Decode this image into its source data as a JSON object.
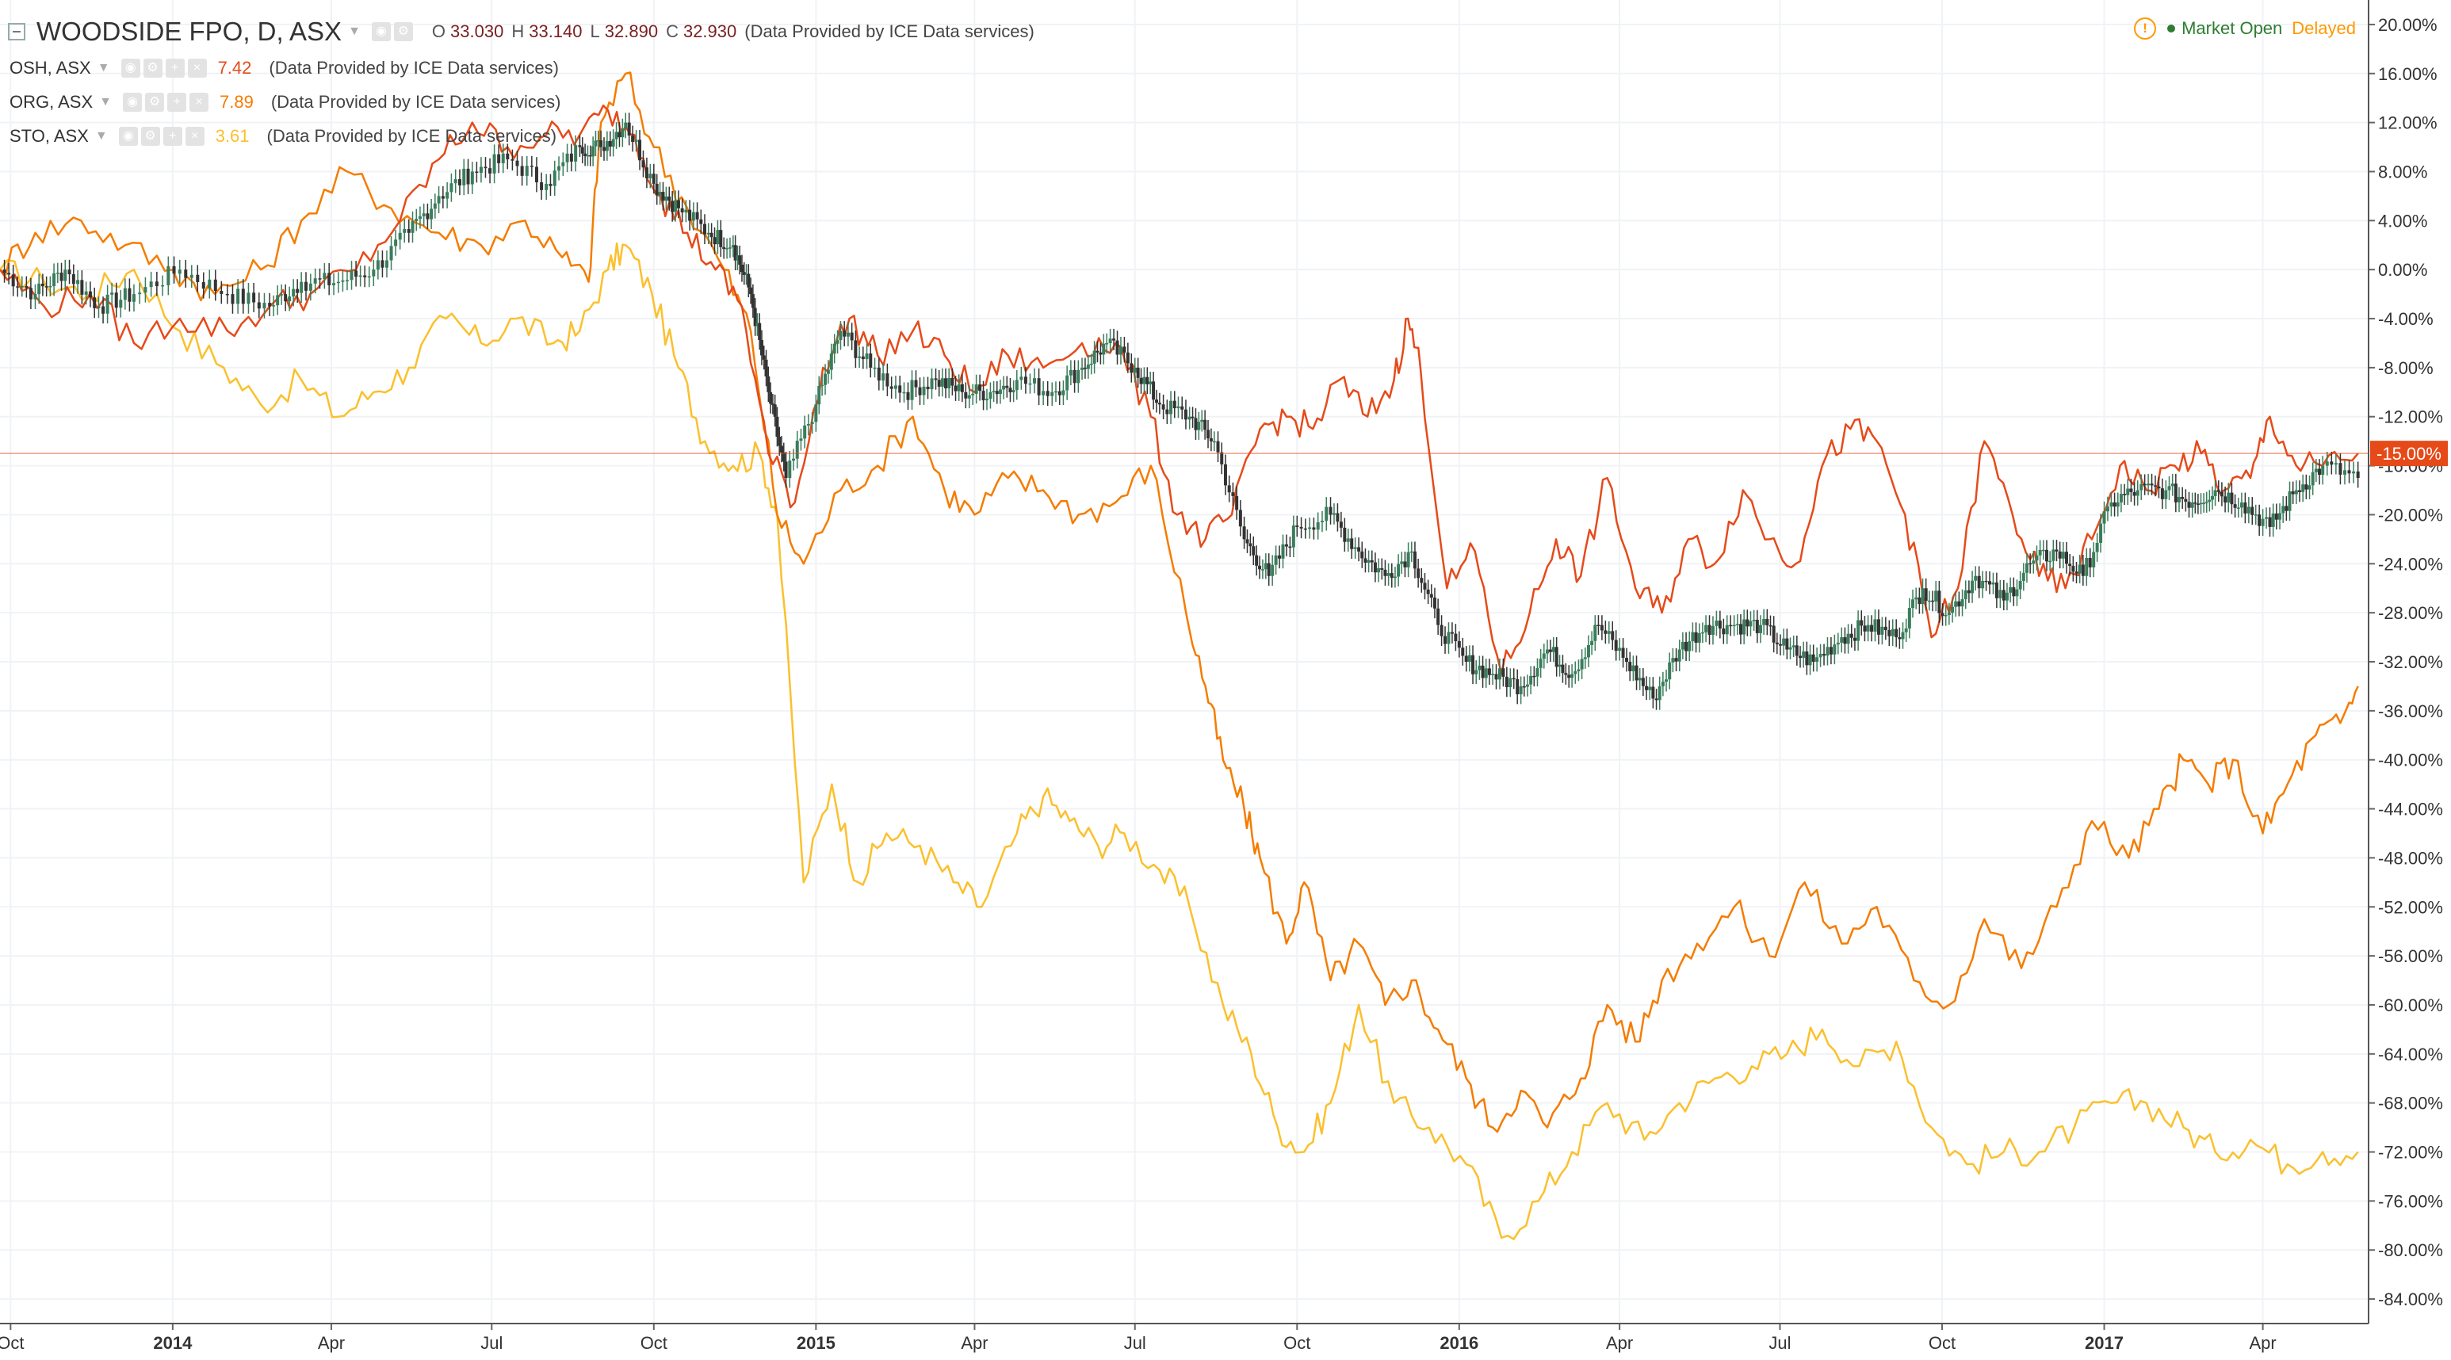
{
  "header": {
    "title": "WOODSIDE FPO, D, ASX",
    "ohlc": [
      {
        "label": "O",
        "value": "33.030"
      },
      {
        "label": "H",
        "value": "33.140"
      },
      {
        "label": "L",
        "value": "32.890"
      },
      {
        "label": "C",
        "value": "32.930"
      }
    ],
    "provider": "(Data Provided by ICE Data services)",
    "status": {
      "alert_icon": "!",
      "market": "Market Open",
      "delay": "Delayed"
    }
  },
  "symbols": [
    {
      "name": "OSH, ASX",
      "value": "7.42",
      "color": "#e64a19",
      "provider": "(Data Provided by ICE Data services)"
    },
    {
      "name": "ORG, ASX",
      "value": "7.89",
      "color": "#f57c00",
      "provider": "(Data Provided by ICE Data services)"
    },
    {
      "name": "STO, ASX",
      "value": "3.61",
      "color": "#fbc02d",
      "provider": "(Data Provided by ICE Data services)"
    }
  ],
  "icons": {
    "collapse": "collapse-icon",
    "caret": "chevron-down-icon",
    "tools": [
      "eye-icon",
      "gear-icon",
      "plus-icon",
      "close-icon"
    ]
  },
  "chart_data": {
    "type": "line",
    "x_type": "date",
    "ylim": [
      -86,
      22
    ],
    "yticks": [
      20,
      16,
      12,
      8,
      4,
      0,
      -4,
      -8,
      -12,
      -16,
      -20,
      -24,
      -28,
      -32,
      -36,
      -40,
      -44,
      -48,
      -52,
      -56,
      -60,
      -64,
      -68,
      -72,
      -76,
      -80,
      -84
    ],
    "ytick_labels": [
      "20.00%",
      "16.00%",
      "12.00%",
      "8.00%",
      "4.00%",
      "0.00%",
      "-4.00%",
      "-8.00%",
      "-12.00%",
      "-16.00%",
      "-20.00%",
      "-24.00%",
      "-28.00%",
      "-32.00%",
      "-36.00%",
      "-40.00%",
      "-44.00%",
      "-48.00%",
      "-52.00%",
      "-56.00%",
      "-60.00%",
      "-64.00%",
      "-68.00%",
      "-72.00%",
      "-76.00%",
      "-80.00%",
      "-84.00%"
    ],
    "x_range": [
      "2013-09-25",
      "2017-05-31"
    ],
    "x_ticks": [
      {
        "date": "2013-10-01",
        "label": "Oct",
        "bold": false
      },
      {
        "date": "2014-01-01",
        "label": "2014",
        "bold": true
      },
      {
        "date": "2014-04-01",
        "label": "Apr",
        "bold": false
      },
      {
        "date": "2014-07-01",
        "label": "Jul",
        "bold": false
      },
      {
        "date": "2014-10-01",
        "label": "Oct",
        "bold": false
      },
      {
        "date": "2015-01-01",
        "label": "2015",
        "bold": true
      },
      {
        "date": "2015-04-01",
        "label": "Apr",
        "bold": false
      },
      {
        "date": "2015-07-01",
        "label": "Jul",
        "bold": false
      },
      {
        "date": "2015-10-01",
        "label": "Oct",
        "bold": false
      },
      {
        "date": "2016-01-01",
        "label": "2016",
        "bold": true
      },
      {
        "date": "2016-04-01",
        "label": "Apr",
        "bold": false
      },
      {
        "date": "2016-07-01",
        "label": "Jul",
        "bold": false
      },
      {
        "date": "2016-10-01",
        "label": "Oct",
        "bold": false
      },
      {
        "date": "2017-01-01",
        "label": "2017",
        "bold": true
      },
      {
        "date": "2017-04-01",
        "label": "Apr",
        "bold": false
      }
    ],
    "last_value": {
      "value": -15.0,
      "label": "-15.00%",
      "color": "#e64a19"
    },
    "series": [
      {
        "name": "WOODSIDE FPO",
        "style": "candles",
        "color": "#333333",
        "dates": [
          "2013-09-25",
          "2013-10-15",
          "2013-11-01",
          "2013-11-20",
          "2013-12-10",
          "2014-01-05",
          "2014-02-01",
          "2014-02-25",
          "2014-03-15",
          "2014-04-05",
          "2014-04-25",
          "2014-05-15",
          "2014-06-01",
          "2014-06-20",
          "2014-07-10",
          "2014-08-01",
          "2014-08-20",
          "2014-09-01",
          "2014-09-15",
          "2014-10-01",
          "2014-10-15",
          "2014-11-01",
          "2014-11-15",
          "2014-11-25",
          "2014-12-05",
          "2014-12-15",
          "2015-01-01",
          "2015-01-15",
          "2015-02-01",
          "2015-02-20",
          "2015-03-10",
          "2015-03-25",
          "2015-04-10",
          "2015-04-25",
          "2015-05-15",
          "2015-06-01",
          "2015-06-15",
          "2015-07-01",
          "2015-07-15",
          "2015-08-01",
          "2015-08-15",
          "2015-09-01",
          "2015-09-15",
          "2015-10-01",
          "2015-10-20",
          "2015-11-05",
          "2015-11-20",
          "2015-12-05",
          "2015-12-20",
          "2016-01-05",
          "2016-01-20",
          "2016-02-05",
          "2016-02-20",
          "2016-03-05",
          "2016-03-20",
          "2016-04-05",
          "2016-04-20",
          "2016-05-05",
          "2016-05-20",
          "2016-06-05",
          "2016-06-20",
          "2016-07-05",
          "2016-07-20",
          "2016-08-05",
          "2016-08-20",
          "2016-09-05",
          "2016-09-20",
          "2016-10-05",
          "2016-10-20",
          "2016-11-05",
          "2016-11-20",
          "2016-12-05",
          "2016-12-20",
          "2017-01-05",
          "2017-01-20",
          "2017-02-05",
          "2017-02-20",
          "2017-03-05",
          "2017-03-20",
          "2017-04-05",
          "2017-04-20",
          "2017-05-05",
          "2017-05-25"
        ],
        "values": [
          0,
          -2,
          0,
          -3,
          -2,
          0,
          -2,
          -3,
          -1,
          -1,
          0,
          3,
          6,
          8,
          9,
          7,
          10,
          10,
          12,
          7,
          5,
          3,
          2,
          -2,
          -10,
          -17,
          -11,
          -5,
          -8,
          -10,
          -9,
          -10,
          -10,
          -9,
          -10,
          -8,
          -6,
          -8,
          -11,
          -12,
          -14,
          -22,
          -25,
          -21,
          -20,
          -23,
          -25,
          -23,
          -29,
          -32,
          -33,
          -34,
          -31,
          -33,
          -29,
          -32,
          -35,
          -31,
          -29,
          -29,
          -29,
          -31,
          -32,
          -30,
          -29,
          -30,
          -26,
          -28,
          -25,
          -27,
          -24,
          -23,
          -25,
          -19,
          -18,
          -18,
          -19,
          -18,
          -19,
          -21,
          -18,
          -16,
          -17
        ]
      },
      {
        "name": "OSH, ASX",
        "style": "line",
        "color": "#e64a19",
        "dates": [
          "2013-09-25",
          "2013-10-20",
          "2013-11-15",
          "2013-12-10",
          "2014-01-05",
          "2014-02-01",
          "2014-02-25",
          "2014-03-20",
          "2014-04-15",
          "2014-05-10",
          "2014-06-01",
          "2014-06-20",
          "2014-07-10",
          "2014-08-01",
          "2014-08-20",
          "2014-09-05",
          "2014-09-20",
          "2014-10-05",
          "2014-10-20",
          "2014-11-05",
          "2014-11-20",
          "2014-12-05",
          "2014-12-20",
          "2015-01-05",
          "2015-01-20",
          "2015-02-05",
          "2015-02-25",
          "2015-03-15",
          "2015-04-01",
          "2015-04-20",
          "2015-05-10",
          "2015-06-01",
          "2015-06-20",
          "2015-07-10",
          "2015-07-25",
          "2015-08-10",
          "2015-08-25",
          "2015-09-10",
          "2015-09-25",
          "2015-10-10",
          "2015-10-25",
          "2015-11-10",
          "2015-11-25",
          "2015-12-03",
          "2015-12-10",
          "2015-12-25",
          "2016-01-10",
          "2016-01-25",
          "2016-02-10",
          "2016-02-25",
          "2016-03-10",
          "2016-03-25",
          "2016-04-10",
          "2016-04-25",
          "2016-05-10",
          "2016-05-25",
          "2016-06-10",
          "2016-06-25",
          "2016-07-10",
          "2016-07-25",
          "2016-08-10",
          "2016-08-25",
          "2016-09-10",
          "2016-09-25",
          "2016-10-10",
          "2016-10-25",
          "2016-11-10",
          "2016-11-25",
          "2016-12-10",
          "2016-12-25",
          "2017-01-10",
          "2017-01-25",
          "2017-02-10",
          "2017-02-25",
          "2017-03-10",
          "2017-03-25",
          "2017-04-05",
          "2017-04-20",
          "2017-05-05",
          "2017-05-25"
        ],
        "values": [
          0,
          -3,
          -2,
          -6,
          -4,
          -5,
          -3,
          -2,
          0,
          4,
          9,
          12,
          10,
          11,
          11,
          13,
          11,
          6,
          3,
          0,
          -3,
          -15,
          -19,
          -8,
          -4,
          -7,
          -5,
          -7,
          -10,
          -7,
          -8,
          -6,
          -6,
          -12,
          -20,
          -22,
          -20,
          -13,
          -12,
          -13,
          -9,
          -12,
          -9,
          -4,
          -8,
          -26,
          -23,
          -33,
          -28,
          -22,
          -25,
          -17,
          -26,
          -28,
          -22,
          -24,
          -18,
          -22,
          -24,
          -16,
          -13,
          -14,
          -20,
          -30,
          -26,
          -14,
          -20,
          -25,
          -26,
          -22,
          -16,
          -18,
          -16,
          -15,
          -18,
          -17,
          -12,
          -16,
          -16,
          -15
        ]
      },
      {
        "name": "ORG, ASX",
        "style": "line",
        "color": "#f57c00",
        "dates": [
          "2013-09-25",
          "2013-10-15",
          "2013-11-10",
          "2013-12-05",
          "2014-01-01",
          "2014-01-25",
          "2014-02-20",
          "2014-03-15",
          "2014-04-10",
          "2014-05-05",
          "2014-06-01",
          "2014-06-25",
          "2014-07-20",
          "2014-08-10",
          "2014-08-25",
          "2014-09-01",
          "2014-09-15",
          "2014-10-01",
          "2014-10-20",
          "2014-11-10",
          "2014-11-25",
          "2014-12-10",
          "2014-12-25",
          "2015-01-15",
          "2015-02-05",
          "2015-02-25",
          "2015-03-15",
          "2015-04-01",
          "2015-04-20",
          "2015-05-10",
          "2015-05-30",
          "2015-06-20",
          "2015-07-10",
          "2015-07-30",
          "2015-08-10",
          "2015-08-20",
          "2015-09-01",
          "2015-09-10",
          "2015-09-25",
          "2015-10-05",
          "2015-10-20",
          "2015-11-05",
          "2015-11-20",
          "2015-12-05",
          "2015-12-20",
          "2016-01-05",
          "2016-01-20",
          "2016-02-05",
          "2016-02-20",
          "2016-03-10",
          "2016-03-25",
          "2016-04-10",
          "2016-04-25",
          "2016-05-15",
          "2016-06-05",
          "2016-06-25",
          "2016-07-15",
          "2016-08-05",
          "2016-08-25",
          "2016-09-15",
          "2016-10-05",
          "2016-10-25",
          "2016-11-15",
          "2016-12-05",
          "2016-12-25",
          "2017-01-15",
          "2017-02-01",
          "2017-02-15",
          "2017-03-01",
          "2017-03-15",
          "2017-04-01",
          "2017-04-15",
          "2017-05-01",
          "2017-05-15",
          "2017-05-25"
        ],
        "values": [
          0,
          3,
          4,
          2,
          0,
          -2,
          0,
          4,
          8,
          5,
          3,
          2,
          4,
          1,
          -1,
          12,
          16,
          10,
          5,
          0,
          -5,
          -20,
          -24,
          -18,
          -16,
          -12,
          -18,
          -20,
          -17,
          -18,
          -20,
          -19,
          -16,
          -28,
          -34,
          -40,
          -44,
          -48,
          -55,
          -50,
          -58,
          -55,
          -60,
          -58,
          -62,
          -66,
          -70,
          -67,
          -70,
          -66,
          -60,
          -63,
          -58,
          -55,
          -52,
          -56,
          -50,
          -55,
          -52,
          -58,
          -60,
          -53,
          -57,
          -52,
          -45,
          -48,
          -44,
          -40,
          -42,
          -40,
          -46,
          -42,
          -38,
          -37,
          -34
        ]
      },
      {
        "name": "STO, ASX",
        "style": "line",
        "color": "#fbc02d",
        "dates": [
          "2013-09-25",
          "2013-10-20",
          "2013-11-15",
          "2013-12-10",
          "2014-01-05",
          "2014-01-30",
          "2014-02-20",
          "2014-03-15",
          "2014-04-05",
          "2014-04-25",
          "2014-05-15",
          "2014-06-05",
          "2014-06-25",
          "2014-07-15",
          "2014-08-05",
          "2014-08-20",
          "2014-09-05",
          "2014-09-15",
          "2014-09-30",
          "2014-10-15",
          "2014-10-30",
          "2014-11-15",
          "2014-11-30",
          "2014-12-10",
          "2014-12-25",
          "2015-01-10",
          "2015-01-25",
          "2015-02-10",
          "2015-03-01",
          "2015-03-20",
          "2015-04-05",
          "2015-04-25",
          "2015-05-10",
          "2015-05-25",
          "2015-06-10",
          "2015-06-25",
          "2015-07-15",
          "2015-08-01",
          "2015-08-20",
          "2015-09-05",
          "2015-09-20",
          "2015-10-05",
          "2015-10-20",
          "2015-11-05",
          "2015-11-25",
          "2015-12-15",
          "2016-01-05",
          "2016-01-25",
          "2016-02-15",
          "2016-03-05",
          "2016-03-25",
          "2016-04-15",
          "2016-05-05",
          "2016-05-25",
          "2016-06-15",
          "2016-07-05",
          "2016-07-25",
          "2016-08-15",
          "2016-09-05",
          "2016-09-25",
          "2016-10-15",
          "2016-11-05",
          "2016-11-25",
          "2016-12-15",
          "2017-01-05",
          "2017-01-25",
          "2017-02-15",
          "2017-03-05",
          "2017-03-25",
          "2017-04-15",
          "2017-05-05",
          "2017-05-25"
        ],
        "values": [
          0,
          -1,
          -2,
          0,
          -5,
          -8,
          -11,
          -9,
          -12,
          -10,
          -8,
          -4,
          -6,
          -4,
          -6,
          -5,
          0,
          2,
          -2,
          -8,
          -14,
          -16,
          -15,
          -20,
          -50,
          -42,
          -50,
          -46,
          -47,
          -50,
          -52,
          -46,
          -43,
          -45,
          -47,
          -46,
          -49,
          -52,
          -60,
          -64,
          -70,
          -72,
          -68,
          -60,
          -68,
          -70,
          -73,
          -79,
          -76,
          -72,
          -68,
          -71,
          -68,
          -66,
          -65,
          -64,
          -62,
          -65,
          -63,
          -70,
          -73,
          -72,
          -72,
          -70,
          -68,
          -68,
          -70,
          -72,
          -71,
          -73,
          -72,
          -72
        ]
      }
    ]
  }
}
